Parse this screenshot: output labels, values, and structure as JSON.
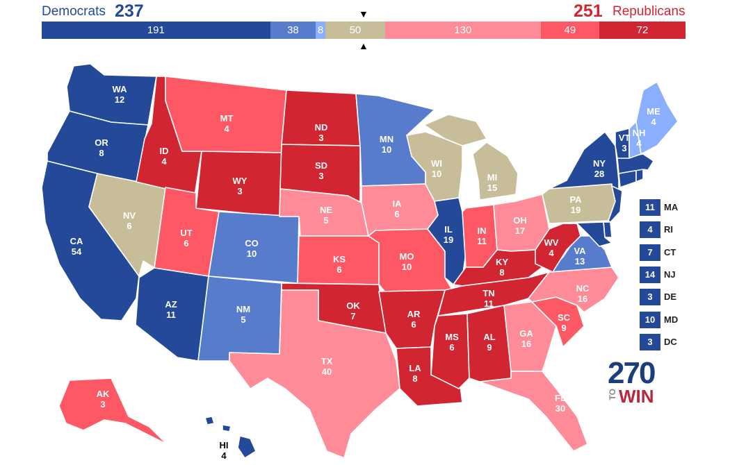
{
  "header": {
    "dem_label": "Democrats",
    "dem_total": "237",
    "rep_label": "Republicans",
    "rep_total": "251",
    "marker_down": "▼",
    "marker_up": "▲"
  },
  "colors": {
    "safe_dem": "#244999",
    "likely_dem": "#577ccc",
    "lean_dem": "#8aafff",
    "tossup": "#c8bd99",
    "lean_rep": "#ff8b98",
    "likely_rep": "#ff5865",
    "safe_rep": "#d22532"
  },
  "bar": [
    {
      "value": 191,
      "category": "safe_dem",
      "label": "191"
    },
    {
      "value": 38,
      "category": "likely_dem",
      "label": "38"
    },
    {
      "value": 8,
      "category": "lean_dem",
      "label": "8"
    },
    {
      "value": 50,
      "category": "tossup",
      "label": "50"
    },
    {
      "value": 130,
      "category": "lean_rep",
      "label": "130"
    },
    {
      "value": 49,
      "category": "likely_rep",
      "label": "49"
    },
    {
      "value": 72,
      "category": "safe_rep",
      "label": "72"
    }
  ],
  "states": {
    "WA": {
      "abbr": "WA",
      "ev": "12",
      "category": "safe_dem"
    },
    "OR": {
      "abbr": "OR",
      "ev": "8",
      "category": "safe_dem"
    },
    "CA": {
      "abbr": "CA",
      "ev": "54",
      "category": "safe_dem"
    },
    "NV": {
      "abbr": "NV",
      "ev": "6",
      "category": "tossup"
    },
    "ID": {
      "abbr": "ID",
      "ev": "4",
      "category": "safe_rep"
    },
    "MT": {
      "abbr": "MT",
      "ev": "4",
      "category": "likely_rep"
    },
    "WY": {
      "abbr": "WY",
      "ev": "3",
      "category": "safe_rep"
    },
    "UT": {
      "abbr": "UT",
      "ev": "6",
      "category": "likely_rep"
    },
    "AZ": {
      "abbr": "AZ",
      "ev": "11",
      "category": "safe_dem"
    },
    "CO": {
      "abbr": "CO",
      "ev": "10",
      "category": "likely_dem"
    },
    "NM": {
      "abbr": "NM",
      "ev": "5",
      "category": "likely_dem"
    },
    "ND": {
      "abbr": "ND",
      "ev": "3",
      "category": "safe_rep"
    },
    "SD": {
      "abbr": "SD",
      "ev": "3",
      "category": "safe_rep"
    },
    "NE": {
      "abbr": "NE",
      "ev": "5",
      "category": "lean_rep"
    },
    "KS": {
      "abbr": "KS",
      "ev": "6",
      "category": "likely_rep"
    },
    "OK": {
      "abbr": "OK",
      "ev": "7",
      "category": "safe_rep"
    },
    "TX": {
      "abbr": "TX",
      "ev": "40",
      "category": "lean_rep"
    },
    "MN": {
      "abbr": "MN",
      "ev": "10",
      "category": "likely_dem"
    },
    "IA": {
      "abbr": "IA",
      "ev": "6",
      "category": "lean_rep"
    },
    "MO": {
      "abbr": "MO",
      "ev": "10",
      "category": "likely_rep"
    },
    "AR": {
      "abbr": "AR",
      "ev": "6",
      "category": "safe_rep"
    },
    "LA": {
      "abbr": "LA",
      "ev": "8",
      "category": "safe_rep"
    },
    "WI": {
      "abbr": "WI",
      "ev": "10",
      "category": "tossup"
    },
    "IL": {
      "abbr": "IL",
      "ev": "19",
      "category": "safe_dem"
    },
    "MI": {
      "abbr": "MI",
      "ev": "15",
      "category": "tossup"
    },
    "IN": {
      "abbr": "IN",
      "ev": "11",
      "category": "likely_rep"
    },
    "OH": {
      "abbr": "OH",
      "ev": "17",
      "category": "lean_rep"
    },
    "KY": {
      "abbr": "KY",
      "ev": "8",
      "category": "safe_rep"
    },
    "TN": {
      "abbr": "TN",
      "ev": "11",
      "category": "safe_rep"
    },
    "MS": {
      "abbr": "MS",
      "ev": "6",
      "category": "safe_rep"
    },
    "AL": {
      "abbr": "AL",
      "ev": "9",
      "category": "safe_rep"
    },
    "GA": {
      "abbr": "GA",
      "ev": "16",
      "category": "lean_rep"
    },
    "FL": {
      "abbr": "FL",
      "ev": "30",
      "category": "lean_rep"
    },
    "SC": {
      "abbr": "SC",
      "ev": "9",
      "category": "likely_rep"
    },
    "NC": {
      "abbr": "NC",
      "ev": "16",
      "category": "lean_rep"
    },
    "VA": {
      "abbr": "VA",
      "ev": "13",
      "category": "likely_dem"
    },
    "WV": {
      "abbr": "WV",
      "ev": "4",
      "category": "safe_rep"
    },
    "PA": {
      "abbr": "PA",
      "ev": "19",
      "category": "tossup"
    },
    "NY": {
      "abbr": "NY",
      "ev": "28",
      "category": "safe_dem"
    },
    "VT": {
      "abbr": "VT",
      "ev": "3",
      "category": "safe_dem"
    },
    "NH": {
      "abbr": "NH",
      "ev": "4",
      "category": "lean_dem"
    },
    "ME": {
      "abbr": "ME",
      "ev": "4",
      "category": "lean_dem"
    },
    "AK": {
      "abbr": "AK",
      "ev": "3",
      "category": "likely_rep"
    },
    "HI": {
      "abbr": "HI",
      "ev": "4",
      "category": "safe_dem"
    },
    "MA": {
      "category": "safe_dem"
    },
    "RI": {
      "category": "safe_dem"
    },
    "CT": {
      "category": "safe_dem"
    },
    "NJ": {
      "category": "safe_dem"
    },
    "DE": {
      "category": "safe_dem"
    },
    "MD": {
      "category": "safe_dem"
    }
  },
  "small_states": [
    {
      "abbr": "MA",
      "ev": "11"
    },
    {
      "abbr": "RI",
      "ev": "4"
    },
    {
      "abbr": "CT",
      "ev": "7"
    },
    {
      "abbr": "NJ",
      "ev": "14"
    },
    {
      "abbr": "DE",
      "ev": "3"
    },
    {
      "abbr": "MD",
      "ev": "10"
    },
    {
      "abbr": "DC",
      "ev": "3"
    }
  ],
  "logo": {
    "number": "270",
    "to": "TO",
    "win": "WIN"
  }
}
